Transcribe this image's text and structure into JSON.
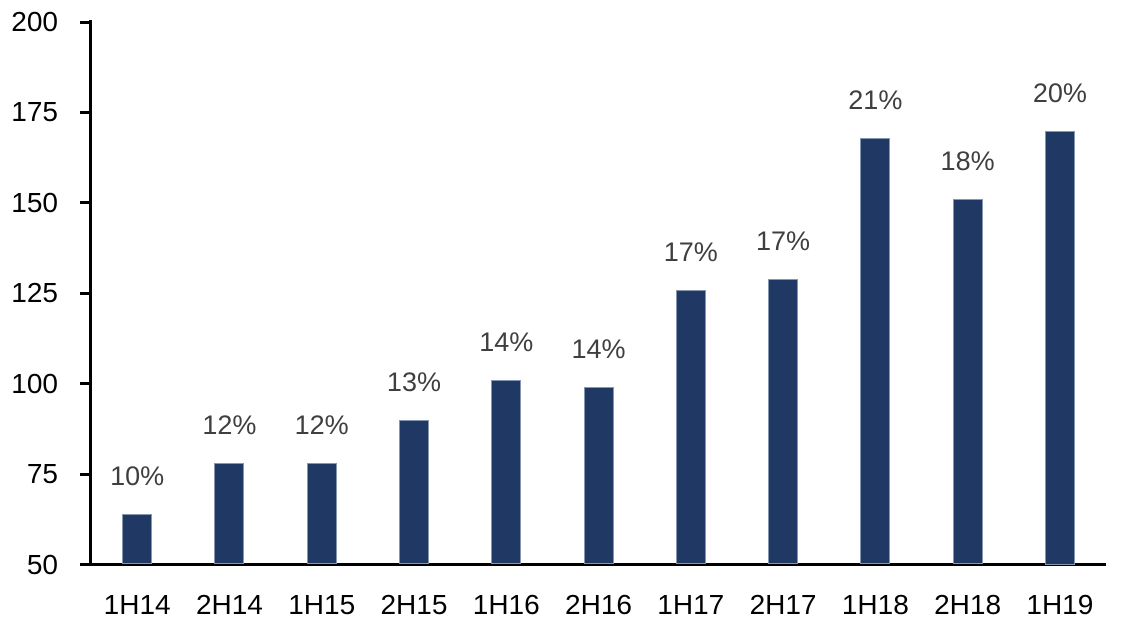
{
  "chart_data": {
    "type": "bar",
    "title": "",
    "xlabel": "",
    "ylabel": "",
    "categories": [
      "1H14",
      "2H14",
      "1H15",
      "2H15",
      "1H16",
      "2H16",
      "1H17",
      "2H17",
      "1H18",
      "2H18",
      "1H19"
    ],
    "values": [
      64,
      78,
      78,
      90,
      101,
      99,
      126,
      129,
      168,
      151,
      170
    ],
    "bar_labels": [
      "10%",
      "12%",
      "12%",
      "13%",
      "14%",
      "14%",
      "17%",
      "17%",
      "21%",
      "18%",
      "20%"
    ],
    "ylim": [
      50,
      200
    ],
    "yticks": [
      200,
      175,
      150,
      125,
      100,
      75,
      50
    ],
    "ytick_interval": 25,
    "grid": false,
    "legend": false,
    "colors": {
      "bar_fill": "#203864",
      "bar_border": "#8496B0",
      "bar_label_text": "#3F3F3F",
      "axis_line": "#000000",
      "axis_tick_text": "#000000",
      "background": "#FFFFFF"
    }
  }
}
